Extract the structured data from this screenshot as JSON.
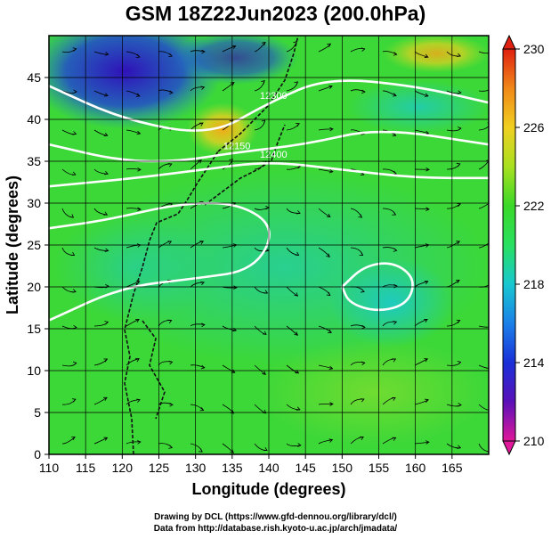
{
  "title": "GSM 18Z22Jun2023 (200.0hPa)",
  "axes": {
    "xlabel": "Longitude (degrees)",
    "ylabel": "Latitude  (degrees)",
    "xticks": [
      "110",
      "115",
      "120",
      "125",
      "130",
      "135",
      "140",
      "145",
      "150",
      "155",
      "160",
      "165"
    ],
    "yticks": [
      "0",
      "5",
      "10",
      "15",
      "20",
      "25",
      "30",
      "35",
      "40",
      "45"
    ],
    "xlim": [
      110,
      170
    ],
    "ylim": [
      0,
      50
    ]
  },
  "colorbar": {
    "ticks": [
      "210",
      "214",
      "218",
      "222",
      "226",
      "230"
    ],
    "range": [
      210,
      230
    ],
    "colors": [
      "#e0189a",
      "#5a10b8",
      "#1a30d8",
      "#1a80e8",
      "#18c8d0",
      "#28e060",
      "#3ad828",
      "#a8e020",
      "#f0d020",
      "#f08818",
      "#e02010"
    ]
  },
  "contour_labels": [
    "12300",
    "12150",
    "12400",
    "12150"
  ],
  "credits": {
    "line1": "Drawing by DCL (https://www.gfd-dennou.org/library/dcl/)",
    "line2": "Data from http://database.rish.kyoto-u.ac.jp/arch/jmadata/"
  },
  "chart_data": {
    "type": "heatmap",
    "title": "GSM 18Z22Jun2023 (200.0hPa)",
    "xlabel": "Longitude (degrees)",
    "ylabel": "Latitude  (degrees)",
    "xlim": [
      110,
      170
    ],
    "ylim": [
      0,
      50
    ],
    "colorbar_range": [
      210,
      230
    ],
    "grid": true,
    "field_samples": [
      {
        "lon": 118,
        "lat": 46,
        "value": 213
      },
      {
        "lon": 125,
        "lat": 44,
        "value": 215
      },
      {
        "lon": 132,
        "lat": 41,
        "value": 226
      },
      {
        "lon": 145,
        "lat": 48,
        "value": 223
      },
      {
        "lon": 160,
        "lat": 47,
        "value": 226
      },
      {
        "lon": 155,
        "lat": 38,
        "value": 219
      },
      {
        "lon": 150,
        "lat": 30,
        "value": 222
      },
      {
        "lon": 157,
        "lat": 20,
        "value": 219
      },
      {
        "lon": 120,
        "lat": 25,
        "value": 221
      },
      {
        "lon": 140,
        "lat": 10,
        "value": 223
      },
      {
        "lon": 115,
        "lat": 5,
        "value": 222
      },
      {
        "lon": 165,
        "lat": 5,
        "value": 224
      }
    ],
    "contours": [
      {
        "label": "12300",
        "points": [
          [
            110,
            44
          ],
          [
            120,
            40
          ],
          [
            132,
            38
          ],
          [
            140,
            42
          ],
          [
            148,
            45
          ],
          [
            160,
            44
          ],
          [
            170,
            42
          ]
        ]
      },
      {
        "label": "12150",
        "points": [
          [
            110,
            37
          ],
          [
            120,
            35
          ],
          [
            128,
            35
          ],
          [
            135,
            36
          ],
          [
            145,
            37
          ],
          [
            155,
            39
          ],
          [
            170,
            37
          ]
        ]
      },
      {
        "label": "12400",
        "points": [
          [
            110,
            32
          ],
          [
            122,
            33
          ],
          [
            131,
            34
          ],
          [
            140,
            35
          ],
          [
            150,
            34
          ],
          [
            160,
            33
          ],
          [
            170,
            33
          ]
        ]
      },
      {
        "label": "",
        "points": [
          [
            110,
            27
          ],
          [
            118,
            28
          ],
          [
            128,
            30
          ],
          [
            136,
            30
          ],
          [
            141,
            27
          ],
          [
            138,
            22
          ],
          [
            130,
            21
          ],
          [
            120,
            20
          ],
          [
            110,
            16
          ]
        ]
      },
      {
        "label": "",
        "points": [
          [
            150,
            20
          ],
          [
            153,
            22.5
          ],
          [
            157,
            23
          ],
          [
            160,
            21
          ],
          [
            159,
            18
          ],
          [
            155,
            17
          ],
          [
            151,
            18
          ],
          [
            150,
            20
          ]
        ]
      }
    ]
  }
}
